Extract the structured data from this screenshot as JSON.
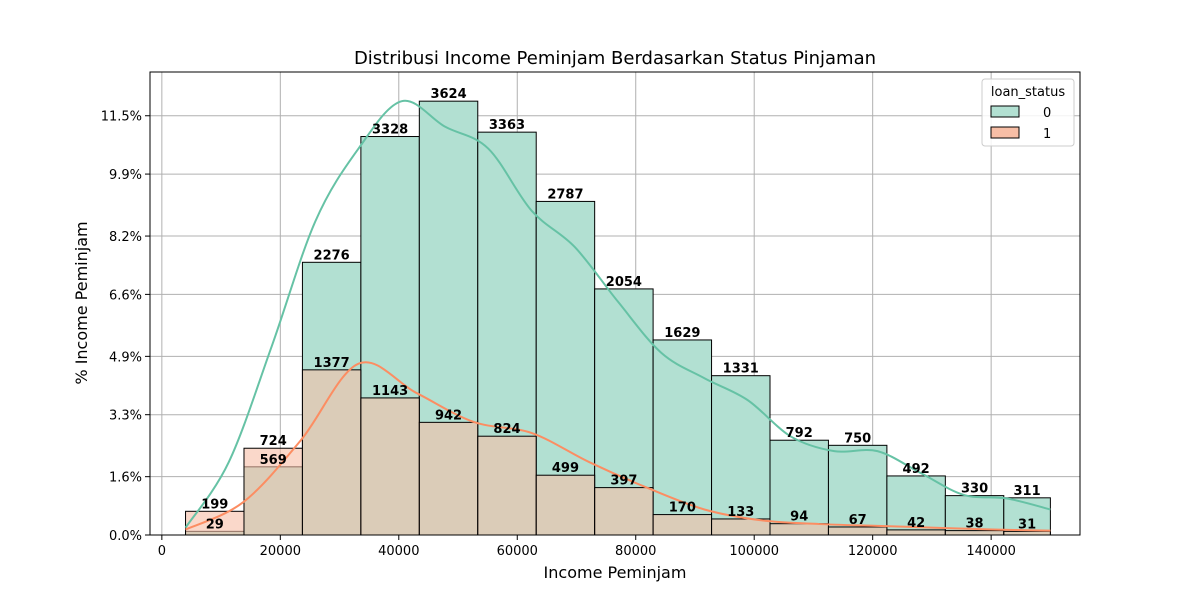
{
  "chart_data": {
    "type": "bar",
    "title": "Distribusi Income Peminjam Berdasarkan Status Pinjaman",
    "xlabel": "Income Peminjam",
    "ylabel": "% Income Peminjam",
    "bin_edges": [
      4000,
      13867,
      23733,
      33600,
      43467,
      53333,
      63200,
      73067,
      82933,
      92800,
      102667,
      112533,
      122400,
      132267,
      142133,
      150000
    ],
    "x_ticks": [
      0,
      20000,
      40000,
      60000,
      80000,
      100000,
      120000,
      140000
    ],
    "x_tick_labels": [
      "0",
      "20000",
      "40000",
      "60000",
      "80000",
      "100000",
      "120000",
      "140000"
    ],
    "y_ticks": [
      0,
      1.6,
      3.3,
      4.9,
      6.6,
      8.2,
      9.9,
      11.5
    ],
    "y_tick_labels": [
      "0.0%",
      "1.6%",
      "3.3%",
      "4.9%",
      "6.6%",
      "8.2%",
      "9.9%",
      "11.5%"
    ],
    "xlim": [
      -2000,
      155000
    ],
    "ylim": [
      0,
      12.7
    ],
    "grid": true,
    "legend_title": "loan_status",
    "legend_position": "top-right",
    "series": [
      {
        "name": "0",
        "color": "#66c2a5",
        "fill": "#b2e0d2",
        "percent": [
          0.1,
          1.87,
          7.48,
          10.93,
          11.9,
          11.05,
          9.15,
          6.75,
          5.35,
          4.37,
          2.6,
          2.46,
          1.62,
          1.08,
          1.02
        ],
        "counts": [
          29,
          569,
          2276,
          3328,
          3624,
          3363,
          2787,
          2054,
          1629,
          1331,
          792,
          750,
          492,
          330,
          311
        ],
        "kde": [
          0.2,
          2.0,
          5.2,
          8.6,
          10.6,
          11.9,
          11.2,
          10.6,
          8.9,
          7.9,
          6.4,
          5.0,
          4.3,
          3.7,
          2.7,
          2.3,
          2.3,
          1.7,
          1.1,
          1.0,
          0.7
        ]
      },
      {
        "name": "1",
        "color": "#fc8d62",
        "fill": "#f7bea6",
        "percent": [
          0.65,
          2.38,
          4.53,
          3.76,
          3.09,
          2.71,
          1.64,
          1.3,
          0.56,
          0.44,
          0.31,
          0.22,
          0.14,
          0.12,
          0.1
        ],
        "counts": [
          199,
          724,
          1377,
          1143,
          942,
          824,
          499,
          397,
          170,
          133,
          94,
          67,
          42,
          38,
          31
        ],
        "kde": [
          0.15,
          0.9,
          2.6,
          4.7,
          3.9,
          3.1,
          2.8,
          2.0,
          1.3,
          0.7,
          0.4,
          0.3,
          0.25,
          0.2,
          0.15,
          0.12
        ]
      }
    ]
  }
}
